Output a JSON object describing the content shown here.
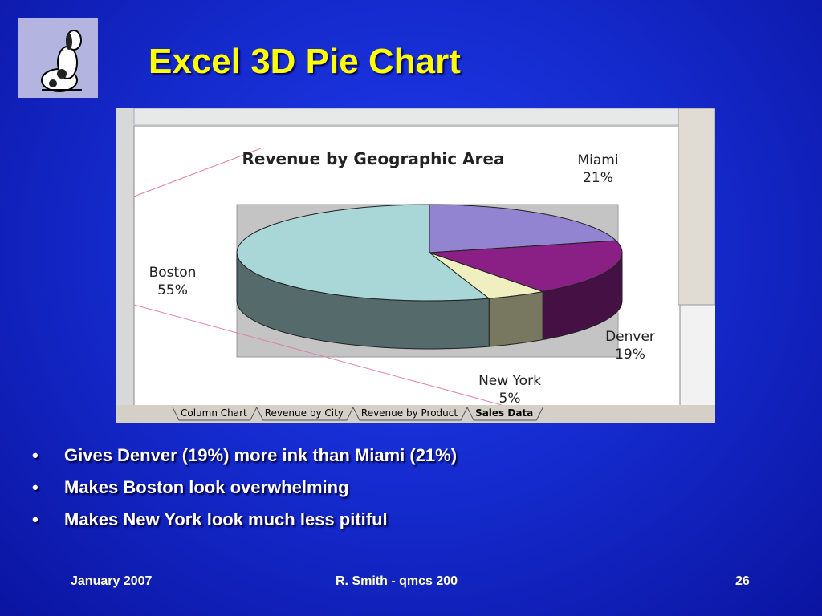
{
  "slide_title": "Excel 3D Pie Chart",
  "chart_data": {
    "type": "pie3d",
    "title": "Revenue by Geographic Area",
    "categories": [
      "Miami",
      "Denver",
      "New York",
      "Boston"
    ],
    "values": [
      21,
      19,
      5,
      55
    ],
    "value_labels": [
      "21%",
      "19%",
      "5%",
      "55%"
    ],
    "colors": [
      "#9384d2",
      "#8a1f86",
      "#f0efc0",
      "#a9d6d6"
    ]
  },
  "sheet_tabs": [
    "Column Chart",
    "Revenue by City",
    "Revenue by Product",
    "Sales Data"
  ],
  "bullets": [
    "Gives Denver (19%) more ink than Miami (21%)",
    "Makes Boston look overwhelming",
    "Makes New York look much less pitiful"
  ],
  "footer": {
    "date": "January 2007",
    "author": "R. Smith - qmcs 200",
    "page": "26"
  }
}
